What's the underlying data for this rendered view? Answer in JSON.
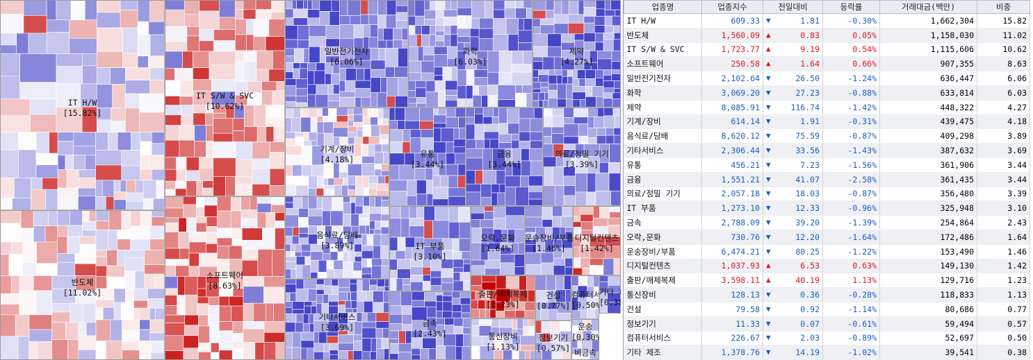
{
  "chart_data": [
    {
      "type": "treemap",
      "unit": "%",
      "sectors": [
        {
          "name": "IT H/W",
          "weight": "15.82%",
          "value": 15.82,
          "change_pct": -0.3
        },
        {
          "name": "반도체",
          "weight": "11.02%",
          "value": 11.02,
          "change_pct": 0.05
        },
        {
          "name": "IT S/W & SVC",
          "weight": "10.62%",
          "value": 10.62,
          "change_pct": 0.54
        },
        {
          "name": "소프트웨어",
          "weight": "8.63%",
          "value": 8.63,
          "change_pct": 0.66
        },
        {
          "name": "일반전기전자",
          "weight": "6.06%",
          "value": 6.06,
          "change_pct": -1.24
        },
        {
          "name": "화학",
          "weight": "6.03%",
          "value": 6.03,
          "change_pct": -0.88
        },
        {
          "name": "제약",
          "weight": "4.27%",
          "value": 4.27,
          "change_pct": -1.42
        },
        {
          "name": "기계/장비",
          "weight": "4.18%",
          "value": 4.18,
          "change_pct": -0.31
        },
        {
          "name": "음식료/담배",
          "weight": "3.89%",
          "value": 3.89,
          "change_pct": -0.87
        },
        {
          "name": "기타서비스",
          "weight": "3.69%",
          "value": 3.69,
          "change_pct": -1.43
        },
        {
          "name": "유통",
          "weight": "3.44%",
          "value": 3.44,
          "change_pct": -1.56
        },
        {
          "name": "금융",
          "weight": "3.44%",
          "value": 3.44,
          "change_pct": -2.58
        },
        {
          "name": "의료/정밀 기기",
          "weight": "3.39%",
          "value": 3.39,
          "change_pct": -0.87
        },
        {
          "name": "IT 부품",
          "weight": "3.10%",
          "value": 3.1,
          "change_pct": -0.96
        },
        {
          "name": "금속",
          "weight": "2.43%",
          "value": 2.43,
          "change_pct": -1.39
        },
        {
          "name": "오락,문화",
          "weight": "1.64%",
          "value": 1.64,
          "change_pct": -1.64
        },
        {
          "name": "운송장비/부품",
          "weight": "1.46%",
          "value": 1.46,
          "change_pct": -1.22
        },
        {
          "name": "디지털컨텐츠",
          "weight": "1.42%",
          "value": 1.42,
          "change_pct": 0.63
        },
        {
          "name": "출판/매체복제",
          "weight": "1.23%",
          "value": 1.23,
          "change_pct": 1.13
        },
        {
          "name": "통신장비",
          "weight": "1.13%",
          "value": 1.13,
          "change_pct": -0.28
        },
        {
          "name": "건설",
          "weight": "0.77%",
          "value": 0.77,
          "change_pct": -1.14
        },
        {
          "name": "정보기기",
          "weight": "0.57%",
          "value": 0.57,
          "change_pct": -0.61
        },
        {
          "name": "컴퓨터서비스",
          "weight": "0.50%",
          "value": 0.5,
          "change_pct": -0.89
        },
        {
          "name": "기타 제조",
          "weight": "0.38%",
          "value": 0.38,
          "change_pct": -1.02
        },
        {
          "name": "운송",
          "weight": "0.30%",
          "value": 0.3,
          "change_pct": null
        },
        {
          "name": "비금속",
          "weight": "",
          "value": null,
          "change_pct": null
        }
      ]
    },
    {
      "type": "table",
      "columns": [
        "업종명",
        "업종지수",
        "전일대비",
        "등락률",
        "거래대금(백만)",
        "비중"
      ],
      "rows": [
        {
          "name": "IT H/W",
          "index": "609.33",
          "dir": "down",
          "diff": "1.81",
          "rate": "-0.30%",
          "amount": "1,662,304",
          "weight": "15.82"
        },
        {
          "name": "반도체",
          "index": "1,560.09",
          "dir": "up",
          "diff": "0.83",
          "rate": "0.05%",
          "amount": "1,158,030",
          "weight": "11.02"
        },
        {
          "name": "IT S/W & SVC",
          "index": "1,723.77",
          "dir": "up",
          "diff": "9.19",
          "rate": "0.54%",
          "amount": "1,115,606",
          "weight": "10.62"
        },
        {
          "name": "소프트웨어",
          "index": "250.58",
          "dir": "up",
          "diff": "1.64",
          "rate": "0.66%",
          "amount": "907,355",
          "weight": "8.63"
        },
        {
          "name": "일반전기전자",
          "index": "2,102.64",
          "dir": "down",
          "diff": "26.50",
          "rate": "-1.24%",
          "amount": "636,447",
          "weight": "6.06"
        },
        {
          "name": "화학",
          "index": "3,069.20",
          "dir": "down",
          "diff": "27.23",
          "rate": "-0.88%",
          "amount": "633,814",
          "weight": "6.03"
        },
        {
          "name": "제약",
          "index": "8,085.91",
          "dir": "down",
          "diff": "116.74",
          "rate": "-1.42%",
          "amount": "448,322",
          "weight": "4.27"
        },
        {
          "name": "기계/장비",
          "index": "614.14",
          "dir": "down",
          "diff": "1.91",
          "rate": "-0.31%",
          "amount": "439,475",
          "weight": "4.18"
        },
        {
          "name": "음식료/담배",
          "index": "8,620.12",
          "dir": "down",
          "diff": "75.59",
          "rate": "-0.87%",
          "amount": "409,298",
          "weight": "3.89"
        },
        {
          "name": "기타서비스",
          "index": "2,306.44",
          "dir": "down",
          "diff": "33.56",
          "rate": "-1.43%",
          "amount": "387,632",
          "weight": "3.69"
        },
        {
          "name": "유통",
          "index": "456.21",
          "dir": "down",
          "diff": "7.23",
          "rate": "-1.56%",
          "amount": "361,906",
          "weight": "3.44"
        },
        {
          "name": "금융",
          "index": "1,551.21",
          "dir": "down",
          "diff": "41.07",
          "rate": "-2.58%",
          "amount": "361,435",
          "weight": "3.44"
        },
        {
          "name": "의료/정밀 기기",
          "index": "2,057.18",
          "dir": "down",
          "diff": "18.03",
          "rate": "-0.87%",
          "amount": "356,480",
          "weight": "3.39"
        },
        {
          "name": "IT 부품",
          "index": "1,273.10",
          "dir": "down",
          "diff": "12.33",
          "rate": "-0.96%",
          "amount": "325,948",
          "weight": "3.10"
        },
        {
          "name": "금속",
          "index": "2,788.09",
          "dir": "down",
          "diff": "39.20",
          "rate": "-1.39%",
          "amount": "254,864",
          "weight": "2.43"
        },
        {
          "name": "오락,문화",
          "index": "730.76",
          "dir": "down",
          "diff": "12.20",
          "rate": "-1.64%",
          "amount": "172,486",
          "weight": "1.64"
        },
        {
          "name": "운송장비/부품",
          "index": "6,474.21",
          "dir": "down",
          "diff": "80.25",
          "rate": "-1.22%",
          "amount": "153,490",
          "weight": "1.46"
        },
        {
          "name": "디지털컨텐츠",
          "index": "1,037.93",
          "dir": "up",
          "diff": "6.53",
          "rate": "0.63%",
          "amount": "149,130",
          "weight": "1.42"
        },
        {
          "name": "출판/매체복제",
          "index": "3,598.11",
          "dir": "up",
          "diff": "40.19",
          "rate": "1.13%",
          "amount": "129,716",
          "weight": "1.23"
        },
        {
          "name": "통신장비",
          "index": "128.13",
          "dir": "down",
          "diff": "0.36",
          "rate": "-0.28%",
          "amount": "118,833",
          "weight": "1.13"
        },
        {
          "name": "건설",
          "index": "79.58",
          "dir": "down",
          "diff": "0.92",
          "rate": "-1.14%",
          "amount": "80,686",
          "weight": "0.77"
        },
        {
          "name": "정보기기",
          "index": "11.33",
          "dir": "down",
          "diff": "0.07",
          "rate": "-0.61%",
          "amount": "59,494",
          "weight": "0.57"
        },
        {
          "name": "컴퓨터서비스",
          "index": "226.67",
          "dir": "down",
          "diff": "2.03",
          "rate": "-0.89%",
          "amount": "52,697",
          "weight": "0.50"
        },
        {
          "name": "기타 제조",
          "index": "1,378.76",
          "dir": "down",
          "diff": "14.19",
          "rate": "-1.02%",
          "amount": "39,541",
          "weight": "0.38"
        }
      ]
    }
  ],
  "colors": {
    "up_text": "#e0161d",
    "down_text": "#1a5dc8",
    "strong_up": "#c40000",
    "strong_down": "#2b2bd0",
    "header_bg": "#e9ecf2",
    "row_alt_bg": "#eef0f4"
  },
  "icons": {
    "up": "▲",
    "down": "▼"
  }
}
